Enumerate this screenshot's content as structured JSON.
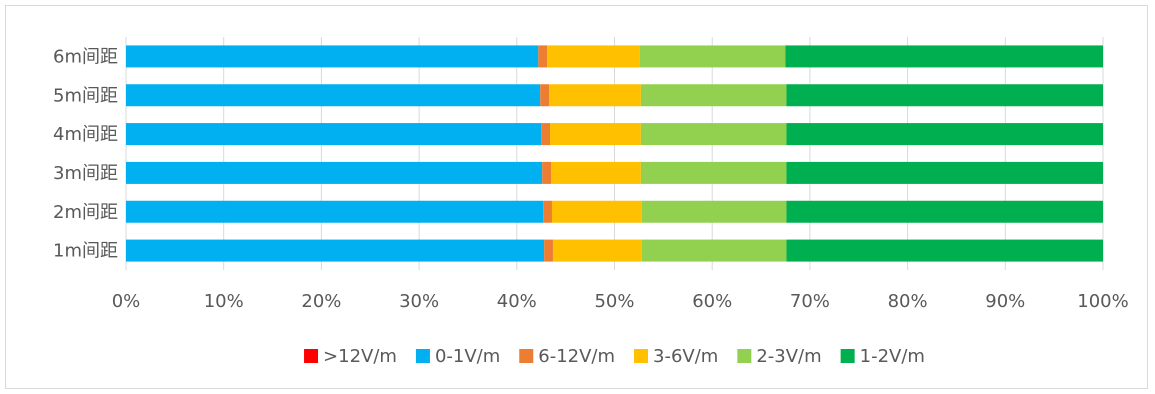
{
  "chart_data": {
    "type": "bar",
    "orientation": "horizontal",
    "stacked": "percent",
    "title": "",
    "xlabel": "",
    "ylabel": "",
    "xlim": [
      0,
      100
    ],
    "x_ticks": [
      "0%",
      "10%",
      "20%",
      "30%",
      "40%",
      "50%",
      "60%",
      "70%",
      "80%",
      "90%",
      "100%"
    ],
    "grid": "vertical",
    "legend_position": "bottom",
    "categories": [
      "6m间距",
      "5m间距",
      "4m间距",
      "3m间距",
      "2m间距",
      "1m间距"
    ],
    "series": [
      {
        "name": ">12V/m",
        "color": "#ff0000",
        "values": [
          0,
          0,
          0,
          0,
          0,
          0
        ]
      },
      {
        "name": "0-1V/m",
        "color": "#00b0f0",
        "values": [
          42.2,
          42.4,
          42.5,
          42.6,
          42.7,
          42.8
        ]
      },
      {
        "name": "6-12V/m",
        "color": "#ed7d31",
        "values": [
          0.9,
          0.9,
          0.9,
          0.9,
          0.9,
          0.9
        ]
      },
      {
        "name": "3-6V/m",
        "color": "#ffc000",
        "values": [
          9.5,
          9.4,
          9.3,
          9.2,
          9.2,
          9.1
        ]
      },
      {
        "name": "2-3V/m",
        "color": "#92d050",
        "values": [
          14.9,
          14.9,
          14.9,
          14.9,
          14.8,
          14.8
        ]
      },
      {
        "name": "1-2V/m",
        "color": "#00b050",
        "values": [
          32.5,
          32.4,
          32.4,
          32.4,
          32.4,
          32.4
        ]
      }
    ]
  }
}
